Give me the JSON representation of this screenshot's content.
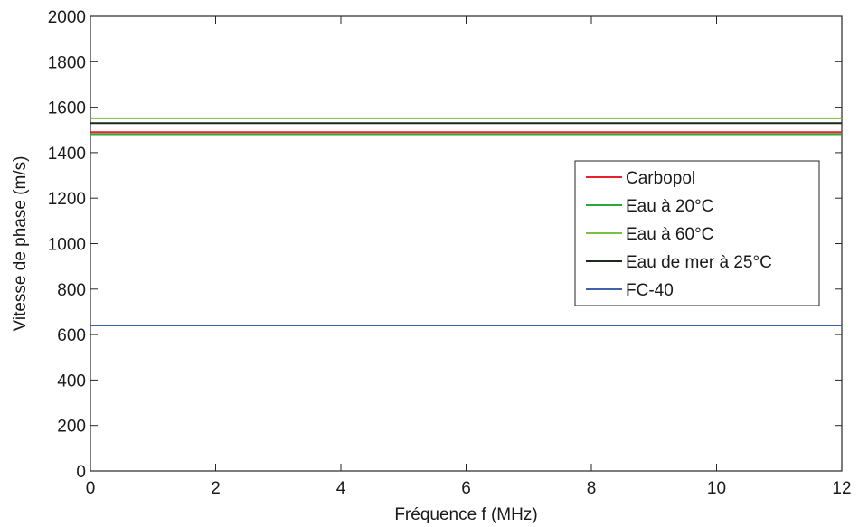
{
  "chart_data": {
    "type": "line",
    "title": "",
    "xlabel": "Fréquence f (MHz)",
    "ylabel": "Vitesse de phase (m/s)",
    "xlim": [
      0,
      12
    ],
    "ylim": [
      0,
      2000
    ],
    "xticks": [
      0,
      2,
      4,
      6,
      8,
      10,
      12
    ],
    "yticks": [
      0,
      200,
      400,
      600,
      800,
      1000,
      1200,
      1400,
      1600,
      1800,
      2000
    ],
    "grid": false,
    "legend_position": "right",
    "series": [
      {
        "name": "Carbopol",
        "color": "#e8212a",
        "x": [
          0,
          12
        ],
        "y": [
          1490,
          1490
        ]
      },
      {
        "name": "Eau à 20°C",
        "color": "#2ca836",
        "x": [
          0,
          12
        ],
        "y": [
          1481,
          1481
        ]
      },
      {
        "name": "Eau à 60°C",
        "color": "#7ac143",
        "x": [
          0,
          12
        ],
        "y": [
          1551,
          1551
        ]
      },
      {
        "name": "Eau de mer à 25°C",
        "color": "#1b2a1b",
        "x": [
          0,
          12
        ],
        "y": [
          1530,
          1530
        ]
      },
      {
        "name": "FC-40",
        "color": "#3d63ad",
        "x": [
          0,
          12
        ],
        "y": [
          640,
          640
        ]
      }
    ]
  }
}
